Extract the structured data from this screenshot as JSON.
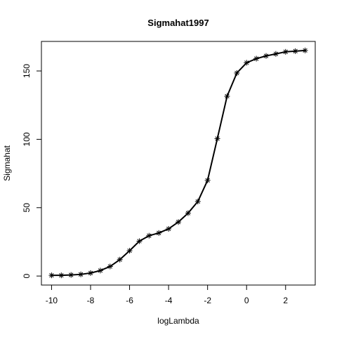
{
  "chart_data": {
    "type": "line",
    "title": "Sigmahat1997",
    "xlabel": "logLambda",
    "ylabel": "Sigmahat",
    "xlim": [
      -10.52,
      3.52
    ],
    "ylim": [
      -6.6,
      171.6
    ],
    "x_ticks": [
      -10,
      -8,
      -6,
      -4,
      -2,
      0,
      2
    ],
    "x_tick_labels": [
      "-10",
      "-8",
      "-6",
      "-4",
      "-2",
      "0",
      "2"
    ],
    "y_ticks": [
      0,
      50,
      100,
      150
    ],
    "y_tick_labels": [
      "0",
      "50",
      "100",
      "150"
    ],
    "grid": false,
    "marker": "asterisk",
    "series": [
      {
        "x": [
          -10,
          -9.5,
          -9,
          -8.5,
          -8,
          -7.5,
          -7,
          -6.5,
          -6,
          -5.5,
          -5,
          -4.5,
          -4,
          -3.5,
          -3,
          -2.5,
          -2,
          -1.5,
          -1,
          -0.5,
          0,
          0.5,
          1,
          1.5,
          2,
          2.5,
          3
        ],
        "y": [
          0.5,
          0.5,
          0.8,
          1.2,
          2.2,
          4,
          7,
          12,
          18.5,
          25.5,
          29.5,
          31.5,
          34.5,
          39.5,
          46,
          54.5,
          70,
          100.5,
          131.5,
          148.5,
          156,
          159,
          161,
          162.5,
          164,
          164.5,
          165
        ]
      }
    ],
    "colors": {
      "line": "#000000",
      "frame": "#000000",
      "background": "#ffffff"
    }
  }
}
